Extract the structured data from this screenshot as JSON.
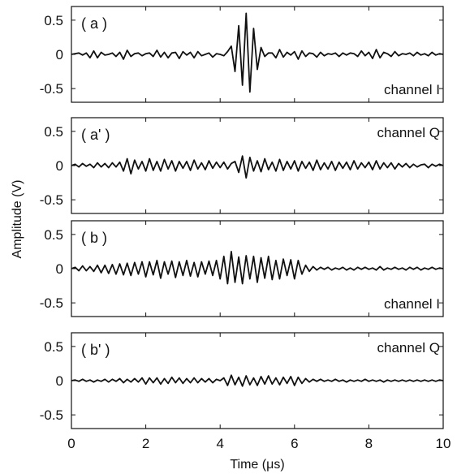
{
  "chart_data": {
    "type": "line",
    "xlabel": "Time (μs)",
    "ylabel": "Amplitude (V)",
    "xlim": [
      0,
      10
    ],
    "xticks": [
      "0",
      "2",
      "4",
      "6",
      "8",
      "10"
    ],
    "ylim": [
      -0.7,
      0.7
    ],
    "yticks": [
      "0.5",
      "0",
      "-0.5"
    ],
    "line_color": "#111111",
    "grid": false,
    "panels": [
      {
        "panel_label": "( a )",
        "channel_label": "channel I",
        "channel_position": "bottom-right",
        "series": [
          {
            "x": [
              0,
              0.1,
              0.2,
              0.3,
              0.4,
              0.5,
              0.6,
              0.7,
              0.8,
              0.9,
              1,
              1.1,
              1.2,
              1.3,
              1.4,
              1.5,
              1.6,
              1.7,
              1.8,
              1.9,
              2,
              2.1,
              2.2,
              2.3,
              2.4,
              2.5,
              2.6,
              2.7,
              2.8,
              2.9,
              3,
              3.1,
              3.2,
              3.3,
              3.4,
              3.5,
              3.6,
              3.7,
              3.8,
              3.9,
              4,
              4.1,
              4.2,
              4.3,
              4.4,
              4.5,
              4.6,
              4.7,
              4.8,
              4.9,
              5,
              5.1,
              5.2,
              5.3,
              5.4,
              5.5,
              5.6,
              5.7,
              5.8,
              5.9,
              6,
              6.1,
              6.2,
              6.3,
              6.4,
              6.5,
              6.6,
              6.7,
              6.8,
              6.9,
              7,
              7.1,
              7.2,
              7.3,
              7.4,
              7.5,
              7.6,
              7.7,
              7.8,
              7.9,
              8,
              8.1,
              8.2,
              8.3,
              8.4,
              8.5,
              8.6,
              8.7,
              8.8,
              8.9,
              9,
              9.1,
              9.2,
              9.3,
              9.4,
              9.5,
              9.6,
              9.7,
              9.8,
              9.9,
              10
            ],
            "y": [
              0,
              0.01,
              0.02,
              -0.01,
              0.02,
              -0.05,
              0.05,
              -0.05,
              0.03,
              -0.01,
              0,
              0.02,
              -0.03,
              0.03,
              -0.07,
              0.06,
              -0.03,
              0.01,
              0.02,
              -0.02,
              0.01,
              0.02,
              -0.03,
              0.06,
              -0.04,
              0.03,
              -0.05,
              0.02,
              0.03,
              -0.06,
              0.04,
              -0.01,
              0.03,
              -0.05,
              0.04,
              -0.02,
              0,
              0.02,
              -0.04,
              0.01,
              0,
              -0.02,
              0.04,
              0.12,
              -0.25,
              0.42,
              -0.45,
              0.6,
              -0.55,
              0.38,
              -0.22,
              0.1,
              -0.03,
              0.02,
              0.02,
              -0.05,
              0.07,
              -0.04,
              0.03,
              -0.01,
              0.04,
              -0.07,
              0.05,
              -0.03,
              0.02,
              0.01,
              -0.04,
              0.03,
              -0.02,
              0.01,
              0,
              0.02,
              -0.03,
              0.02,
              -0.01,
              0.02,
              0.01,
              -0.03,
              0.05,
              -0.02,
              0.03,
              -0.06,
              0.07,
              -0.05,
              0.03,
              0.01,
              -0.03,
              0.04,
              -0.02,
              0.01,
              0,
              0.02,
              -0.02,
              0.03,
              -0.01,
              0.01,
              -0.02,
              0.03,
              -0.01,
              0.01,
              0
            ]
          }
        ]
      },
      {
        "panel_label": "( a' )",
        "channel_label": "channel Q",
        "channel_position": "top-right",
        "series": [
          {
            "x": [
              0,
              0.1,
              0.2,
              0.3,
              0.4,
              0.5,
              0.6,
              0.7,
              0.8,
              0.9,
              1,
              1.1,
              1.2,
              1.3,
              1.4,
              1.5,
              1.6,
              1.7,
              1.8,
              1.9,
              2,
              2.1,
              2.2,
              2.3,
              2.4,
              2.5,
              2.6,
              2.7,
              2.8,
              2.9,
              3,
              3.1,
              3.2,
              3.3,
              3.4,
              3.5,
              3.6,
              3.7,
              3.8,
              3.9,
              4,
              4.1,
              4.2,
              4.3,
              4.4,
              4.5,
              4.6,
              4.7,
              4.8,
              4.9,
              5,
              5.1,
              5.2,
              5.3,
              5.4,
              5.5,
              5.6,
              5.7,
              5.8,
              5.9,
              6,
              6.1,
              6.2,
              6.3,
              6.4,
              6.5,
              6.6,
              6.7,
              6.8,
              6.9,
              7,
              7.1,
              7.2,
              7.3,
              7.4,
              7.5,
              7.6,
              7.7,
              7.8,
              7.9,
              8,
              8.1,
              8.2,
              8.3,
              8.4,
              8.5,
              8.6,
              8.7,
              8.8,
              8.9,
              9,
              9.1,
              9.2,
              9.3,
              9.4,
              9.5,
              9.6,
              9.7,
              9.8,
              9.9,
              10
            ],
            "y": [
              0,
              0.02,
              -0.02,
              0.03,
              -0.01,
              0.02,
              -0.03,
              0.04,
              -0.02,
              0.03,
              -0.03,
              0.04,
              -0.02,
              0.05,
              -0.08,
              0.1,
              -0.12,
              0.08,
              -0.05,
              0.06,
              -0.08,
              0.1,
              -0.07,
              0.06,
              -0.08,
              0.09,
              -0.05,
              0.07,
              -0.08,
              0.06,
              -0.04,
              0.06,
              -0.07,
              0.08,
              -0.05,
              0.04,
              -0.06,
              0.07,
              -0.04,
              0.05,
              -0.03,
              0.05,
              -0.05,
              0.03,
              0.06,
              -0.1,
              0.14,
              -0.18,
              0.12,
              -0.08,
              0.07,
              -0.09,
              0.1,
              -0.06,
              0.05,
              -0.08,
              0.09,
              -0.07,
              0.06,
              -0.05,
              0.07,
              -0.08,
              0.06,
              -0.04,
              0.05,
              -0.07,
              0.08,
              -0.06,
              0.04,
              -0.05,
              0.06,
              -0.07,
              0.05,
              -0.04,
              0.05,
              -0.06,
              0.07,
              -0.05,
              0.04,
              -0.03,
              0.05,
              -0.06,
              0.07,
              -0.05,
              0.04,
              -0.03,
              0.04,
              -0.05,
              0.03,
              -0.02,
              0.03,
              -0.03,
              0.02,
              -0.02,
              0.01,
              0.02,
              -0.03,
              0.02,
              -0.01,
              0.02,
              0
            ]
          }
        ]
      },
      {
        "panel_label": "( b )",
        "channel_label": "channel I",
        "channel_position": "bottom-right",
        "series": [
          {
            "x": [
              0,
              0.1,
              0.2,
              0.3,
              0.4,
              0.5,
              0.6,
              0.7,
              0.8,
              0.9,
              1,
              1.1,
              1.2,
              1.3,
              1.4,
              1.5,
              1.6,
              1.7,
              1.8,
              1.9,
              2,
              2.1,
              2.2,
              2.3,
              2.4,
              2.5,
              2.6,
              2.7,
              2.8,
              2.9,
              3,
              3.1,
              3.2,
              3.3,
              3.4,
              3.5,
              3.6,
              3.7,
              3.8,
              3.9,
              4,
              4.1,
              4.2,
              4.3,
              4.4,
              4.5,
              4.6,
              4.7,
              4.8,
              4.9,
              5,
              5.1,
              5.2,
              5.3,
              5.4,
              5.5,
              5.6,
              5.7,
              5.8,
              5.9,
              6,
              6.1,
              6.2,
              6.3,
              6.4,
              6.5,
              6.6,
              6.7,
              6.8,
              6.9,
              7,
              7.1,
              7.2,
              7.3,
              7.4,
              7.5,
              7.6,
              7.7,
              7.8,
              7.9,
              8,
              8.1,
              8.2,
              8.3,
              8.4,
              8.5,
              8.6,
              8.7,
              8.8,
              8.9,
              9,
              9.1,
              9.2,
              9.3,
              9.4,
              9.5,
              9.6,
              9.7,
              9.8,
              9.9,
              10
            ],
            "y": [
              0,
              0.02,
              -0.03,
              0.04,
              -0.03,
              0.03,
              -0.04,
              0.05,
              -0.06,
              0.05,
              -0.07,
              0.06,
              -0.08,
              0.07,
              -0.09,
              0.08,
              -0.1,
              0.09,
              -0.08,
              0.1,
              -0.12,
              0.1,
              -0.09,
              0.12,
              -0.14,
              0.1,
              -0.08,
              0.11,
              -0.13,
              0.1,
              -0.1,
              0.12,
              -0.11,
              0.09,
              -0.12,
              0.1,
              -0.08,
              0.11,
              -0.1,
              0.12,
              -0.15,
              0.18,
              -0.22,
              0.25,
              -0.2,
              0.17,
              -0.22,
              0.19,
              -0.15,
              0.18,
              -0.2,
              0.16,
              -0.14,
              0.18,
              -0.16,
              0.12,
              -0.15,
              0.14,
              -0.1,
              0.13,
              -0.15,
              0.12,
              -0.08,
              0.05,
              -0.04,
              0.03,
              -0.02,
              0.02,
              -0.01,
              0.02,
              -0.02,
              0.01,
              -0.01,
              0.02,
              -0.02,
              0.01,
              -0.02,
              0.02,
              -0.01,
              0.02,
              -0.01,
              0.01,
              -0.02,
              0.03,
              -0.02,
              0.01,
              -0.01,
              0.02,
              -0.01,
              0.01,
              -0.02,
              0.02,
              -0.01,
              0.02,
              -0.02,
              0.01,
              -0.01,
              0.02,
              -0.01,
              0.01,
              0
            ]
          }
        ]
      },
      {
        "panel_label": "( b' )",
        "channel_label": "channel Q",
        "channel_position": "top-right",
        "series": [
          {
            "x": [
              0,
              0.1,
              0.2,
              0.3,
              0.4,
              0.5,
              0.6,
              0.7,
              0.8,
              0.9,
              1,
              1.1,
              1.2,
              1.3,
              1.4,
              1.5,
              1.6,
              1.7,
              1.8,
              1.9,
              2,
              2.1,
              2.2,
              2.3,
              2.4,
              2.5,
              2.6,
              2.7,
              2.8,
              2.9,
              3,
              3.1,
              3.2,
              3.3,
              3.4,
              3.5,
              3.6,
              3.7,
              3.8,
              3.9,
              4,
              4.1,
              4.2,
              4.3,
              4.4,
              4.5,
              4.6,
              4.7,
              4.8,
              4.9,
              5,
              5.1,
              5.2,
              5.3,
              5.4,
              5.5,
              5.6,
              5.7,
              5.8,
              5.9,
              6,
              6.1,
              6.2,
              6.3,
              6.4,
              6.5,
              6.6,
              6.7,
              6.8,
              6.9,
              7,
              7.1,
              7.2,
              7.3,
              7.4,
              7.5,
              7.6,
              7.7,
              7.8,
              7.9,
              8,
              8.1,
              8.2,
              8.3,
              8.4,
              8.5,
              8.6,
              8.7,
              8.8,
              8.9,
              9,
              9.1,
              9.2,
              9.3,
              9.4,
              9.5,
              9.6,
              9.7,
              9.8,
              9.9,
              10
            ],
            "y": [
              0,
              0.01,
              -0.01,
              0.02,
              -0.01,
              0.01,
              -0.02,
              0.01,
              -0.01,
              0.02,
              -0.02,
              0.02,
              -0.01,
              0.03,
              -0.03,
              0.02,
              -0.02,
              0.03,
              -0.02,
              0.04,
              -0.05,
              0.04,
              -0.03,
              0.04,
              -0.05,
              0.03,
              -0.04,
              0.05,
              -0.03,
              0.04,
              -0.04,
              0.03,
              -0.03,
              0.04,
              -0.03,
              0.03,
              -0.02,
              0.03,
              -0.03,
              0.02,
              0,
              0.04,
              -0.07,
              0.08,
              -0.06,
              0.05,
              -0.08,
              0.07,
              -0.06,
              0.04,
              -0.07,
              0.06,
              -0.05,
              0.07,
              -0.05,
              0.04,
              -0.06,
              0.05,
              -0.04,
              0.06,
              -0.07,
              0.05,
              -0.04,
              0.03,
              -0.02,
              0.02,
              -0.01,
              0.02,
              -0.01,
              0.01,
              -0.01,
              0.02,
              -0.01,
              0.01,
              -0.02,
              0.01,
              -0.01,
              0.01,
              -0.01,
              0.02,
              -0.01,
              0.01,
              -0.01,
              0.01,
              -0.02,
              0.01,
              -0.01,
              0.01,
              -0.01,
              0.01,
              -0.01,
              0.01,
              -0.01,
              0.01,
              -0.01,
              0.01,
              -0.01,
              0.01,
              -0.01,
              0.01,
              0
            ]
          }
        ]
      }
    ]
  }
}
